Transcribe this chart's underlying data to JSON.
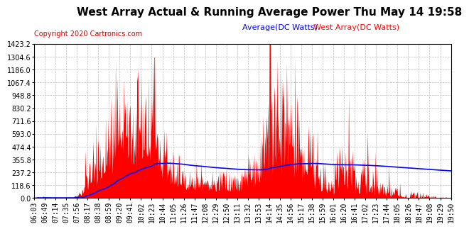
{
  "title": "West Array Actual & Running Average Power Thu May 14 19:58",
  "copyright": "Copyright 2020 Cartronics.com",
  "legend_average": "Average(DC Watts)",
  "legend_west": "West Array(DC Watts)",
  "ymax": 1423.1,
  "ymin": 0.0,
  "ytick_step": 118.6,
  "background_color": "#ffffff",
  "grid_color": "#bbbbbb",
  "bar_color": "#ff0000",
  "line_color": "#0000ff",
  "title_fontsize": 11,
  "axis_fontsize": 7,
  "copyright_color": "#cc0000",
  "legend_avg_color": "#0000ff",
  "legend_west_color": "#ff0000",
  "time_labels": [
    "06:03",
    "06:49",
    "07:14",
    "07:35",
    "07:56",
    "08:17",
    "08:38",
    "08:59",
    "09:20",
    "09:41",
    "10:02",
    "10:23",
    "10:44",
    "11:05",
    "11:26",
    "11:47",
    "12:08",
    "12:29",
    "12:50",
    "13:11",
    "13:32",
    "13:53",
    "14:14",
    "14:35",
    "14:56",
    "15:17",
    "15:38",
    "15:59",
    "16:01",
    "16:20",
    "16:41",
    "17:02",
    "17:23",
    "17:44",
    "18:05",
    "18:26",
    "18:47",
    "19:08",
    "19:29",
    "19:50"
  ]
}
